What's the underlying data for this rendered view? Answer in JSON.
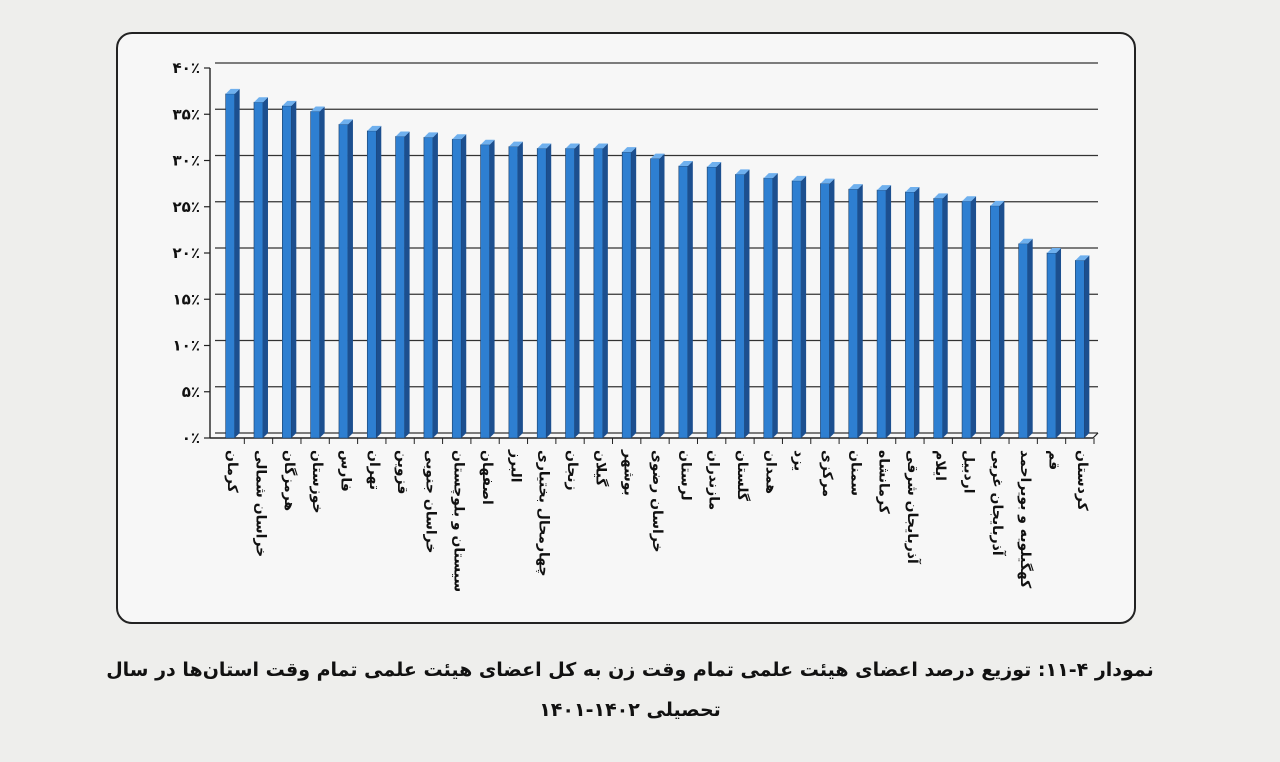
{
  "chart_data": {
    "type": "bar",
    "categories": [
      "کرمان",
      "خراسان شمالی",
      "هرمزگان",
      "خوزستان",
      "فارس",
      "تهران",
      "قزوین",
      "خراسان جنوبی",
      "سیستان و بلوچستان",
      "اصفهان",
      "البرز",
      "چهارمحال بختیاری",
      "زنجان",
      "گیلان",
      "بوشهر",
      "خراسان رضوی",
      "لرستان",
      "مازندران",
      "گلستان",
      "همدان",
      "یزد",
      "مرکزی",
      "سمنان",
      "کرمانشاه",
      "آذربایجان شرقی",
      "ایلام",
      "اردبیل",
      "آذربایجان غربی",
      "کهگیلویه و بویراحمد",
      "قم",
      "کردستان"
    ],
    "values": [
      37.2,
      36.3,
      35.9,
      35.3,
      33.9,
      33.2,
      32.6,
      32.5,
      32.3,
      31.7,
      31.5,
      31.3,
      31.3,
      31.3,
      30.9,
      30.2,
      29.4,
      29.3,
      28.5,
      28.1,
      27.8,
      27.5,
      26.9,
      26.8,
      26.6,
      25.9,
      25.6,
      25.1,
      21.0,
      20.0,
      19.2
    ],
    "ylim": [
      0,
      40
    ],
    "yticks": [
      "۰٪",
      "۵٪",
      "۱۰٪",
      "۱۵٪",
      "۲۰٪",
      "۲۵٪",
      "۳۰٪",
      "۳۵٪",
      "۴۰٪"
    ],
    "grid": true,
    "colors": {
      "bar": "#2e7fd1",
      "bar_side": "#1c4f8f",
      "bar_top": "#6fb0ee",
      "grid": "#333333"
    }
  },
  "caption": {
    "line1": "نمودار ۴-۱۱: توزیع درصد اعضای هیئت علمی تمام وقت زن به کل اعضای هیئت علمی تمام وقت استان‌ها در سال",
    "line2": "تحصیلی ۱۴۰۲-۱۴۰۱"
  }
}
